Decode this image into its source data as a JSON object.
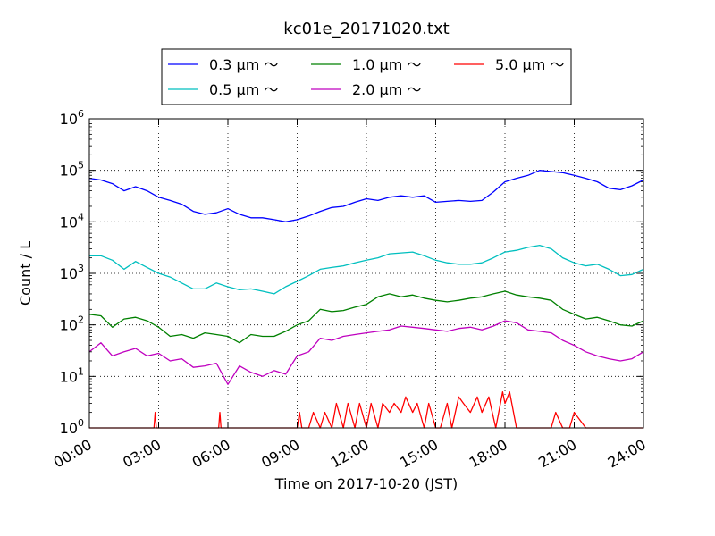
{
  "chart_data": {
    "type": "line",
    "title": "kc01e_20171020.txt",
    "xlabel": "Time on 2017-10-20 (JST)",
    "ylabel": "Count / L",
    "xlim": [
      0,
      24
    ],
    "ylim": [
      1,
      1000000
    ],
    "yscale": "log",
    "grid": true,
    "legend_position": "top-center",
    "x_ticks": [
      {
        "value": 0,
        "label": "00:00"
      },
      {
        "value": 3,
        "label": "03:00"
      },
      {
        "value": 6,
        "label": "06:00"
      },
      {
        "value": 9,
        "label": "09:00"
      },
      {
        "value": 12,
        "label": "12:00"
      },
      {
        "value": 15,
        "label": "15:00"
      },
      {
        "value": 18,
        "label": "18:00"
      },
      {
        "value": 21,
        "label": "21:00"
      },
      {
        "value": 24,
        "label": "24:00"
      }
    ],
    "y_ticks": [
      {
        "value": 1,
        "base": "10",
        "exp": "0"
      },
      {
        "value": 10,
        "base": "10",
        "exp": "1"
      },
      {
        "value": 100,
        "base": "10",
        "exp": "2"
      },
      {
        "value": 1000,
        "base": "10",
        "exp": "3"
      },
      {
        "value": 10000,
        "base": "10",
        "exp": "4"
      },
      {
        "value": 100000,
        "base": "10",
        "exp": "5"
      },
      {
        "value": 1000000,
        "base": "10",
        "exp": "6"
      }
    ],
    "series": [
      {
        "name": "0.3 μm ～",
        "color": "#0000ff",
        "x": [
          0,
          0.5,
          1,
          1.5,
          2,
          2.5,
          3,
          3.5,
          4,
          4.5,
          5,
          5.5,
          6,
          6.5,
          7,
          7.5,
          8,
          8.5,
          9,
          9.5,
          10,
          10.5,
          11,
          11.5,
          12,
          12.5,
          13,
          13.5,
          14,
          14.5,
          15,
          15.5,
          16,
          16.5,
          17,
          17.5,
          18,
          18.5,
          19,
          19.5,
          20,
          20.5,
          21,
          21.5,
          22,
          22.5,
          23,
          23.5,
          24
        ],
        "values": [
          70000,
          65000,
          55000,
          40000,
          48000,
          40000,
          30000,
          26000,
          22000,
          16000,
          14000,
          15000,
          18000,
          14000,
          12000,
          12000,
          11000,
          10000,
          11000,
          13000,
          16000,
          19000,
          20000,
          24000,
          28000,
          26000,
          30000,
          32000,
          30000,
          32000,
          24000,
          25000,
          26000,
          25000,
          26000,
          38000,
          60000,
          70000,
          80000,
          100000,
          95000,
          90000,
          80000,
          70000,
          60000,
          45000,
          42000,
          50000,
          65000
        ]
      },
      {
        "name": "0.5 μm ～",
        "color": "#00bfbf",
        "x": [
          0,
          0.5,
          1,
          1.5,
          2,
          2.5,
          3,
          3.5,
          4,
          4.5,
          5,
          5.5,
          6,
          6.5,
          7,
          7.5,
          8,
          8.5,
          9,
          9.5,
          10,
          10.5,
          11,
          11.5,
          12,
          12.5,
          13,
          13.5,
          14,
          14.5,
          15,
          15.5,
          16,
          16.5,
          17,
          17.5,
          18,
          18.5,
          19,
          19.5,
          20,
          20.5,
          21,
          21.5,
          22,
          22.5,
          23,
          23.5,
          24
        ],
        "values": [
          2200,
          2200,
          1800,
          1200,
          1700,
          1300,
          1000,
          850,
          650,
          500,
          500,
          650,
          550,
          480,
          500,
          450,
          400,
          550,
          700,
          900,
          1200,
          1300,
          1400,
          1600,
          1800,
          2000,
          2400,
          2500,
          2600,
          2200,
          1800,
          1600,
          1500,
          1500,
          1600,
          2000,
          2600,
          2800,
          3200,
          3500,
          3000,
          2000,
          1600,
          1400,
          1500,
          1200,
          900,
          950,
          1200
        ]
      },
      {
        "name": "1.0 μm ～",
        "color": "#008000",
        "x": [
          0,
          0.5,
          1,
          1.5,
          2,
          2.5,
          3,
          3.5,
          4,
          4.5,
          5,
          5.5,
          6,
          6.5,
          7,
          7.5,
          8,
          8.5,
          9,
          9.5,
          10,
          10.5,
          11,
          11.5,
          12,
          12.5,
          13,
          13.5,
          14,
          14.5,
          15,
          15.5,
          16,
          16.5,
          17,
          17.5,
          18,
          18.5,
          19,
          19.5,
          20,
          20.5,
          21,
          21.5,
          22,
          22.5,
          23,
          23.5,
          24
        ],
        "values": [
          160,
          150,
          90,
          130,
          140,
          120,
          90,
          60,
          65,
          55,
          70,
          65,
          60,
          45,
          65,
          60,
          60,
          75,
          100,
          120,
          200,
          180,
          190,
          220,
          250,
          350,
          400,
          350,
          380,
          330,
          300,
          280,
          300,
          330,
          350,
          400,
          450,
          380,
          350,
          330,
          300,
          200,
          160,
          130,
          140,
          120,
          100,
          95,
          120
        ]
      },
      {
        "name": "2.0 μm ～",
        "color": "#bf00bf",
        "x": [
          0,
          0.5,
          1,
          1.5,
          2,
          2.5,
          3,
          3.5,
          4,
          4.5,
          5,
          5.5,
          6,
          6.5,
          7,
          7.5,
          8,
          8.5,
          9,
          9.5,
          10,
          10.5,
          11,
          11.5,
          12,
          12.5,
          13,
          13.5,
          14,
          14.5,
          15,
          15.5,
          16,
          16.5,
          17,
          17.5,
          18,
          18.5,
          19,
          19.5,
          20,
          20.5,
          21,
          21.5,
          22,
          22.5,
          23,
          23.5,
          24
        ],
        "values": [
          30,
          45,
          25,
          30,
          35,
          25,
          28,
          20,
          22,
          15,
          16,
          18,
          7,
          16,
          12,
          10,
          13,
          11,
          25,
          30,
          55,
          50,
          60,
          65,
          70,
          75,
          80,
          95,
          90,
          85,
          80,
          75,
          85,
          90,
          80,
          95,
          120,
          110,
          80,
          75,
          70,
          50,
          40,
          30,
          25,
          22,
          20,
          22,
          30
        ]
      },
      {
        "name": "5.0 μm ～",
        "color": "#ff0000",
        "x": [
          0,
          1,
          2,
          2.8,
          2.85,
          2.9,
          3,
          5,
          5.6,
          5.65,
          5.7,
          6,
          8,
          9,
          9.1,
          9.2,
          9.5,
          9.7,
          10,
          10.2,
          10.5,
          10.7,
          11,
          11.2,
          11.5,
          11.7,
          12,
          12.2,
          12.5,
          12.7,
          13,
          13.2,
          13.5,
          13.7,
          14,
          14.2,
          14.5,
          14.7,
          15,
          15.2,
          15.5,
          15.7,
          16,
          16.2,
          16.5,
          16.8,
          17,
          17.3,
          17.6,
          17.9,
          18,
          18.2,
          18.5,
          18.7,
          19,
          19.5,
          20,
          20.2,
          20.5,
          20.8,
          21,
          21.5,
          22,
          23,
          24
        ],
        "values": [
          1,
          1,
          1,
          1,
          2,
          1,
          1,
          1,
          1,
          2,
          1,
          1,
          1,
          1,
          2,
          1,
          1,
          2,
          1,
          2,
          1,
          3,
          1,
          3,
          1,
          3,
          1,
          3,
          1,
          3,
          2,
          3,
          2,
          4,
          2,
          3,
          1,
          3,
          1,
          1,
          3,
          1,
          4,
          3,
          2,
          4,
          2,
          4,
          1,
          5,
          3,
          5,
          1,
          1,
          1,
          1,
          1,
          2,
          1,
          1,
          2,
          1,
          1,
          1,
          1
        ]
      }
    ]
  }
}
